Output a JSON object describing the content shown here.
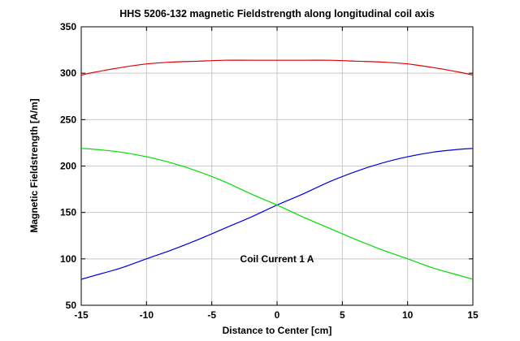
{
  "chart_data": {
    "type": "line",
    "title": "HHS 5206-132 magnetic Fieldstrength along longitudinal coil axis",
    "xlabel": "Distance to Center [cm]",
    "ylabel": "Magnetic Fieldstrength [A/m]",
    "xlim": [
      -15,
      15
    ],
    "ylim": [
      50,
      350
    ],
    "xticks": [
      -15,
      -10,
      -5,
      0,
      5,
      10,
      15
    ],
    "yticks": [
      50,
      100,
      150,
      200,
      250,
      300,
      350
    ],
    "grid": true,
    "annotation": {
      "text": "Coil Current 1 A",
      "x": 0,
      "y": 100
    },
    "series": [
      {
        "color": "#e00000",
        "x": [
          -15,
          -14,
          -12,
          -10,
          -8,
          -6,
          -4,
          -2,
          0,
          2,
          4,
          6,
          8,
          10,
          12,
          14,
          15
        ],
        "y": [
          298,
          301,
          306,
          310,
          312,
          313,
          314,
          314,
          314,
          314,
          314,
          313,
          312,
          310,
          306,
          301,
          298
        ]
      },
      {
        "color": "#0000dd",
        "x": [
          -15,
          -14,
          -12,
          -10,
          -8,
          -6,
          -4,
          -2,
          0,
          2,
          4,
          6,
          8,
          10,
          12,
          14,
          15
        ],
        "y": [
          78,
          82,
          90,
          100,
          110,
          121,
          133,
          145,
          158,
          170,
          183,
          194,
          203,
          210,
          215,
          218,
          219
        ]
      },
      {
        "color": "#00dd00",
        "x": [
          -15,
          -14,
          -12,
          -10,
          -8,
          -6,
          -4,
          -2,
          0,
          2,
          4,
          6,
          8,
          10,
          12,
          14,
          15
        ],
        "y": [
          219,
          218,
          215,
          210,
          203,
          194,
          183,
          170,
          158,
          145,
          133,
          121,
          110,
          100,
          90,
          82,
          78
        ]
      }
    ]
  }
}
